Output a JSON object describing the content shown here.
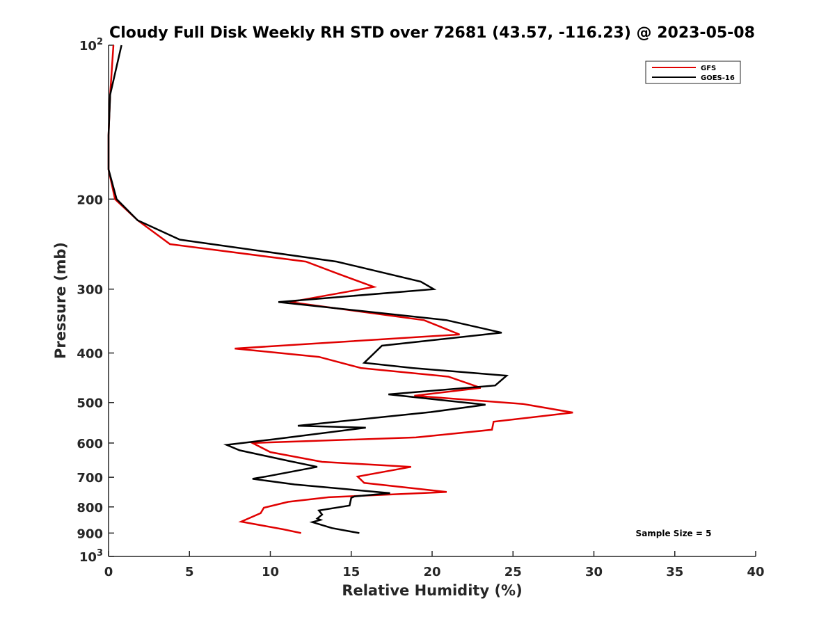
{
  "chart_data": {
    "type": "line",
    "title": "Cloudy Full Disk Weekly RH STD over 72681 (43.57, -116.23) @ 2023-05-08",
    "xlabel": "Relative Humidity (%)",
    "ylabel": "Pressure (mb)",
    "xlim": [
      0,
      40
    ],
    "ylim": [
      100,
      1000
    ],
    "y_scale": "log",
    "y_reversed": true,
    "x_ticks": [
      0,
      5,
      10,
      15,
      20,
      25,
      30,
      35,
      40
    ],
    "x_tick_labels": [
      "0",
      "5",
      "10",
      "15",
      "20",
      "25",
      "30",
      "35",
      "40"
    ],
    "y_ticks": [
      100,
      200,
      300,
      400,
      500,
      600,
      700,
      800,
      900,
      1000
    ],
    "y_tick_labels": [
      "10^2",
      "200",
      "300",
      "400",
      "500",
      "600",
      "700",
      "800",
      "900",
      "10^3"
    ],
    "grid": false,
    "legend_position": "top-right",
    "annotation": "Sample Size = 5",
    "series": [
      {
        "name": "GFS",
        "color": "#e00000",
        "points": [
          [
            0.3,
            100
          ],
          [
            0.1,
            125
          ],
          [
            0.0,
            150
          ],
          [
            0.0,
            175
          ],
          [
            0.4,
            200
          ],
          [
            1.8,
            220
          ],
          [
            3.8,
            245
          ],
          [
            12.2,
            265
          ],
          [
            14.2,
            280
          ],
          [
            16.4,
            297
          ],
          [
            11.2,
            318
          ],
          [
            19.5,
            345
          ],
          [
            21.7,
            368
          ],
          [
            7.8,
            392
          ],
          [
            13.0,
            407
          ],
          [
            15.6,
            428
          ],
          [
            21.0,
            445
          ],
          [
            23.0,
            468
          ],
          [
            18.9,
            485
          ],
          [
            25.6,
            503
          ],
          [
            28.7,
            523
          ],
          [
            23.8,
            545
          ],
          [
            23.7,
            565
          ],
          [
            19.0,
            585
          ],
          [
            8.9,
            600
          ],
          [
            10.0,
            625
          ],
          [
            13.2,
            653
          ],
          [
            18.7,
            668
          ],
          [
            15.4,
            698
          ],
          [
            15.8,
            718
          ],
          [
            20.9,
            748
          ],
          [
            13.6,
            766
          ],
          [
            11.1,
            782
          ],
          [
            9.6,
            803
          ],
          [
            9.4,
            823
          ],
          [
            8.2,
            855
          ],
          [
            10.8,
            885
          ],
          [
            11.9,
            900
          ]
        ]
      },
      {
        "name": "GOES-16",
        "color": "#000000",
        "points": [
          [
            0.8,
            100
          ],
          [
            0.1,
            125
          ],
          [
            0.0,
            150
          ],
          [
            0.0,
            175
          ],
          [
            0.5,
            200
          ],
          [
            1.8,
            220
          ],
          [
            4.4,
            240
          ],
          [
            14.1,
            265
          ],
          [
            19.3,
            290
          ],
          [
            20.1,
            300
          ],
          [
            10.5,
            318
          ],
          [
            20.9,
            345
          ],
          [
            24.3,
            365
          ],
          [
            16.9,
            387
          ],
          [
            15.8,
            418
          ],
          [
            18.8,
            428
          ],
          [
            24.6,
            443
          ],
          [
            23.9,
            463
          ],
          [
            17.3,
            482
          ],
          [
            23.3,
            505
          ],
          [
            19.9,
            522
          ],
          [
            11.7,
            555
          ],
          [
            15.9,
            560
          ],
          [
            10.2,
            590
          ],
          [
            7.3,
            605
          ],
          [
            8.1,
            620
          ],
          [
            11.1,
            650
          ],
          [
            12.9,
            668
          ],
          [
            9.8,
            697
          ],
          [
            8.9,
            705
          ],
          [
            11.5,
            723
          ],
          [
            17.4,
            752
          ],
          [
            15.2,
            763
          ],
          [
            15.0,
            768
          ],
          [
            14.9,
            795
          ],
          [
            13.0,
            813
          ],
          [
            13.2,
            828
          ],
          [
            12.9,
            843
          ],
          [
            13.1,
            848
          ],
          [
            12.6,
            857
          ],
          [
            13.8,
            880
          ],
          [
            15.5,
            900
          ]
        ]
      }
    ]
  }
}
